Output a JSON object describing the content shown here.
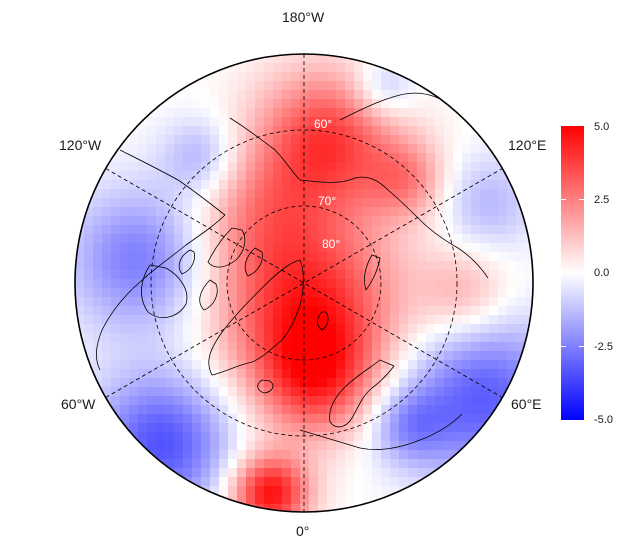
{
  "map": {
    "projection": "north-polar-stereographic",
    "longitude_labels": {
      "top": "180°W",
      "upper_left": "120°W",
      "upper_right": "120°E",
      "lower_left": "60°W",
      "lower_right": "60°E",
      "bottom": "0°"
    },
    "latitude_labels": [
      "60°",
      "70°",
      "80°"
    ],
    "graticule": "dashed",
    "coastlines": "black"
  },
  "colorbar": {
    "ticks": [
      "5.0",
      "2.5",
      "0.0",
      "-2.5",
      "-5.0"
    ],
    "min": -5.0,
    "max": 5.0,
    "colors": {
      "low": "#0000ff",
      "mid": "#ffffff",
      "high": "#ff0000"
    }
  }
}
